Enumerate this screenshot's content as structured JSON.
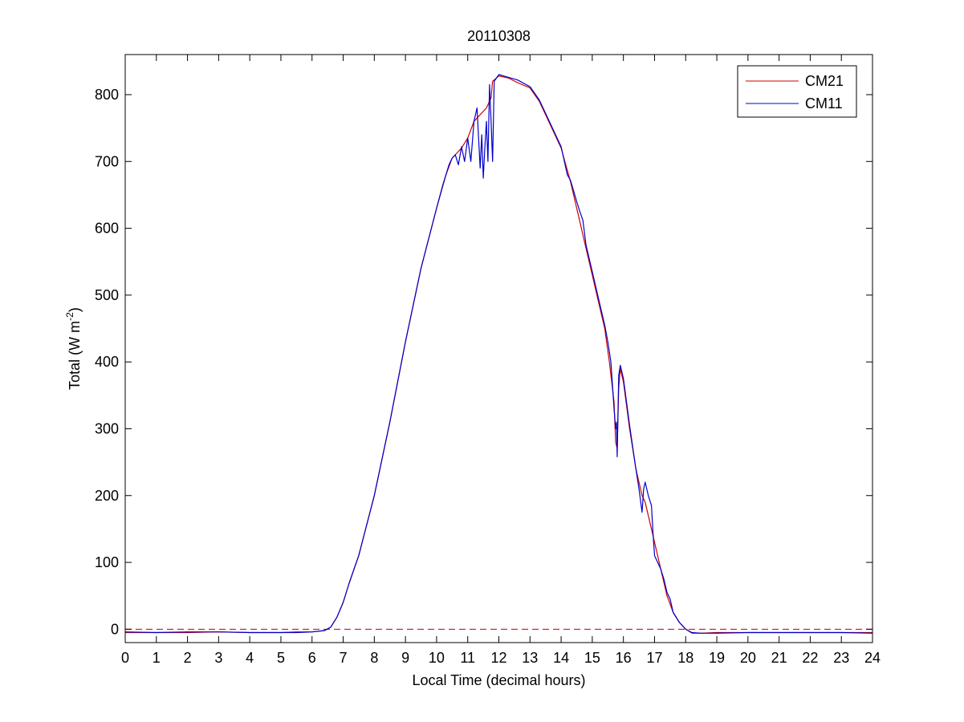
{
  "chart_data": {
    "type": "line",
    "title": "20110308",
    "xlabel": "Local Time (decimal hours)",
    "ylabel": {
      "prefix": "Total (W m",
      "superscript": "-2",
      "suffix": ")"
    },
    "xlim": [
      0,
      24
    ],
    "ylim": [
      -20,
      860
    ],
    "xticks": [
      0,
      1,
      2,
      3,
      4,
      5,
      6,
      7,
      8,
      9,
      10,
      11,
      12,
      13,
      14,
      15,
      16,
      17,
      18,
      19,
      20,
      21,
      22,
      23,
      24
    ],
    "yticks": [
      0,
      100,
      200,
      300,
      400,
      500,
      600,
      700,
      800
    ],
    "grid": false,
    "legend_position": "top-right",
    "zero_line": {
      "y": 0,
      "color": "#c00000",
      "style": "dashed"
    },
    "series": [
      {
        "name": "CM21",
        "color": "#cc0000",
        "x": [
          0,
          1,
          2,
          3,
          4,
          5,
          5.5,
          6,
          6.4,
          6.6,
          6.8,
          7,
          7.2,
          7.5,
          8,
          8.5,
          9,
          9.5,
          10,
          10.3,
          10.5,
          10.8,
          11,
          11.2,
          11.4,
          11.6,
          11.75,
          11.8,
          12,
          12.3,
          12.6,
          13,
          13.3,
          13.6,
          14,
          14.3,
          14.6,
          14.8,
          15,
          15.2,
          15.4,
          15.55,
          15.7,
          15.75,
          15.8,
          15.85,
          15.9,
          16,
          16.2,
          16.4,
          16.6,
          16.7,
          16.8,
          16.9,
          17,
          17.2,
          17.4,
          17.6,
          17.8,
          18,
          18.2,
          18.5,
          19,
          20,
          21,
          22,
          23,
          24
        ],
        "y": [
          -5,
          -5,
          -5,
          -4,
          -5,
          -5,
          -4,
          -4,
          -2,
          3,
          18,
          40,
          70,
          110,
          200,
          310,
          430,
          540,
          630,
          680,
          705,
          720,
          735,
          760,
          770,
          780,
          795,
          820,
          828,
          825,
          818,
          810,
          790,
          760,
          720,
          670,
          610,
          570,
          530,
          490,
          450,
          400,
          340,
          280,
          270,
          360,
          390,
          370,
          300,
          240,
          200,
          190,
          170,
          150,
          130,
          90,
          50,
          25,
          10,
          0,
          -6,
          -6,
          -5,
          -5,
          -5,
          -5,
          -5,
          -5
        ]
      },
      {
        "name": "CM11",
        "color": "#0000cc",
        "x": [
          0,
          1,
          2,
          3,
          4,
          5,
          5.5,
          6,
          6.4,
          6.6,
          6.8,
          7,
          7.2,
          7.5,
          8,
          8.5,
          9,
          9.5,
          10,
          10.2,
          10.4,
          10.5,
          10.6,
          10.7,
          10.8,
          10.9,
          11,
          11.1,
          11.2,
          11.3,
          11.4,
          11.45,
          11.5,
          11.55,
          11.6,
          11.65,
          11.7,
          11.75,
          11.8,
          11.85,
          12,
          12.3,
          12.6,
          13,
          13.3,
          13.6,
          14,
          14.2,
          14.3,
          14.5,
          14.6,
          14.7,
          14.8,
          15,
          15.2,
          15.4,
          15.5,
          15.6,
          15.7,
          15.75,
          15.78,
          15.8,
          15.85,
          15.9,
          16,
          16.2,
          16.4,
          16.5,
          16.6,
          16.65,
          16.7,
          16.8,
          16.9,
          16.95,
          17,
          17.2,
          17.3,
          17.4,
          17.5,
          17.6,
          17.8,
          18,
          18.2,
          18.5,
          19,
          20,
          21,
          22,
          23,
          24
        ],
        "y": [
          -4,
          -5,
          -4,
          -4,
          -5,
          -5,
          -5,
          -4,
          -2,
          3,
          18,
          40,
          70,
          110,
          200,
          310,
          430,
          540,
          630,
          665,
          695,
          705,
          710,
          695,
          722,
          700,
          735,
          700,
          760,
          780,
          690,
          740,
          675,
          720,
          760,
          700,
          815,
          760,
          700,
          820,
          830,
          826,
          822,
          812,
          792,
          762,
          722,
          680,
          672,
          640,
          625,
          612,
          575,
          535,
          495,
          455,
          430,
          400,
          330,
          300,
          310,
          258,
          380,
          395,
          375,
          305,
          240,
          210,
          175,
          210,
          220,
          200,
          185,
          145,
          110,
          90,
          75,
          55,
          45,
          25,
          10,
          0,
          -5,
          -6,
          -6,
          -5,
          -5,
          -5,
          -5,
          -6
        ]
      }
    ]
  }
}
